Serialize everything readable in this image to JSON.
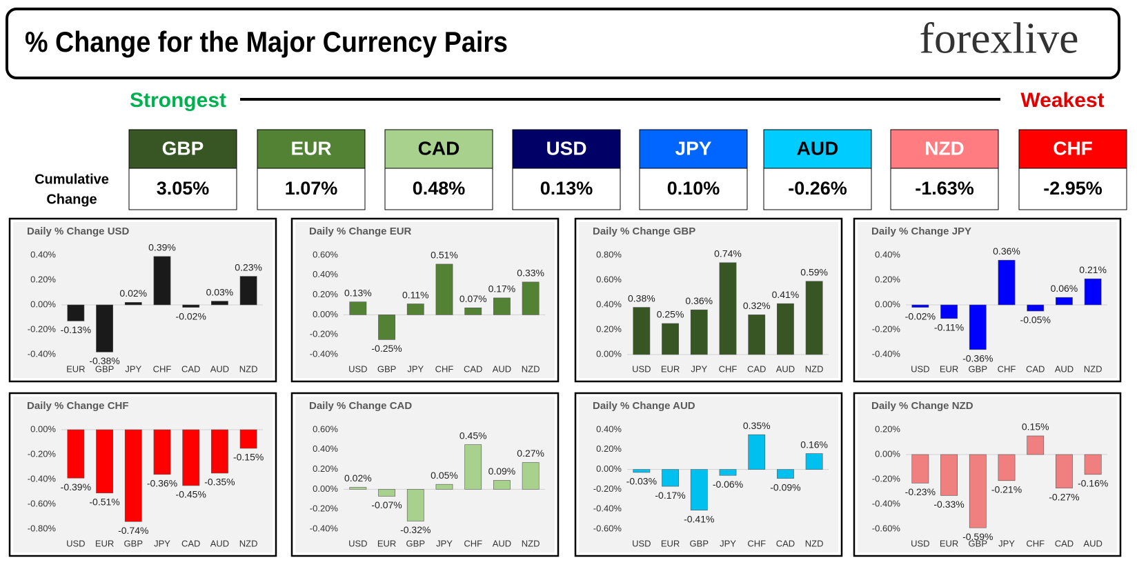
{
  "header": {
    "title": "% Change for the Major Currency Pairs",
    "logo": "forexlive"
  },
  "strongest": "Strongest",
  "weakest": "Weakest",
  "cumulative_label": [
    "Cumulative",
    "Change"
  ],
  "currencies": [
    {
      "code": "GBP",
      "change": "3.05%",
      "color": "#375623",
      "text_color": "#ffffff"
    },
    {
      "code": "EUR",
      "change": "1.07%",
      "color": "#548235",
      "text_color": "#ffffff"
    },
    {
      "code": "CAD",
      "change": "0.48%",
      "color": "#a9d18e",
      "text_color": "#000000"
    },
    {
      "code": "USD",
      "change": "0.13%",
      "color": "#000066",
      "text_color": "#ffffff"
    },
    {
      "code": "JPY",
      "change": "0.10%",
      "color": "#0066ff",
      "text_color": "#ffffff"
    },
    {
      "code": "AUD",
      "change": "-0.26%",
      "color": "#00ccff",
      "text_color": "#000000"
    },
    {
      "code": "NZD",
      "change": "-1.63%",
      "color": "#ff7c80",
      "text_color": "#ffffff"
    },
    {
      "code": "CHF",
      "change": "-2.95%",
      "color": "#ff0000",
      "text_color": "#ffffff"
    }
  ],
  "chart_data": [
    {
      "type": "bar",
      "title": "Daily % Change USD",
      "color": "#1a1a1a",
      "grid": false,
      "categories": [
        "EUR",
        "GBP",
        "JPY",
        "CHF",
        "CAD",
        "AUD",
        "NZD"
      ],
      "values": [
        -0.13,
        -0.38,
        0.02,
        0.39,
        -0.02,
        0.03,
        0.23
      ],
      "value_labels": [
        "-0.13%",
        "-0.38%",
        "0.02%",
        "0.39%",
        "-0.02%",
        "0.03%",
        "0.23%"
      ],
      "ylim": [
        -0.4,
        0.4
      ],
      "yticks": [
        {
          "value": -0.4,
          "label": "-0.40%"
        },
        {
          "value": -0.2,
          "label": "-0.20%"
        },
        {
          "value": 0,
          "label": "0.00%"
        },
        {
          "value": 0.2,
          "label": "0.20%"
        },
        {
          "value": 0.4,
          "label": "0.40%"
        }
      ]
    },
    {
      "type": "bar",
      "title": "Daily % Change EUR",
      "color": "#548235",
      "grid": false,
      "categories": [
        "USD",
        "GBP",
        "JPY",
        "CHF",
        "CAD",
        "AUD",
        "NZD"
      ],
      "values": [
        0.13,
        -0.25,
        0.11,
        0.51,
        0.07,
        0.17,
        0.33
      ],
      "value_labels": [
        "0.13%",
        "-0.25%",
        "0.11%",
        "0.51%",
        "0.07%",
        "0.17%",
        "0.33%"
      ],
      "ylim": [
        -0.4,
        0.6
      ],
      "yticks": [
        {
          "value": -0.4,
          "label": "-0.40%"
        },
        {
          "value": -0.2,
          "label": "-0.20%"
        },
        {
          "value": 0,
          "label": "0.00%"
        },
        {
          "value": 0.2,
          "label": "0.20%"
        },
        {
          "value": 0.4,
          "label": "0.40%"
        },
        {
          "value": 0.6,
          "label": "0.60%"
        }
      ]
    },
    {
      "type": "bar",
      "title": "Daily % Change GBP",
      "color": "#375623",
      "grid": false,
      "categories": [
        "USD",
        "EUR",
        "JPY",
        "CHF",
        "CAD",
        "AUD",
        "NZD"
      ],
      "values": [
        0.38,
        0.25,
        0.36,
        0.74,
        0.32,
        0.41,
        0.59
      ],
      "value_labels": [
        "0.38%",
        "0.25%",
        "0.36%",
        "0.74%",
        "0.32%",
        "0.41%",
        "0.59%"
      ],
      "ylim": [
        0,
        0.8
      ],
      "yticks": [
        {
          "value": 0,
          "label": "0.00%"
        },
        {
          "value": 0.2,
          "label": "0.20%"
        },
        {
          "value": 0.4,
          "label": "0.40%"
        },
        {
          "value": 0.6,
          "label": "0.60%"
        },
        {
          "value": 0.8,
          "label": "0.80%"
        }
      ]
    },
    {
      "type": "bar",
      "title": "Daily % Change JPY",
      "color": "#0000ff",
      "grid": false,
      "categories": [
        "USD",
        "EUR",
        "GBP",
        "CHF",
        "CAD",
        "AUD",
        "NZD"
      ],
      "values": [
        -0.02,
        -0.11,
        -0.36,
        0.36,
        -0.05,
        0.06,
        0.21
      ],
      "value_labels": [
        "-0.02%",
        "-0.11%",
        "-0.36%",
        "0.36%",
        "-0.05%",
        "0.06%",
        "0.21%"
      ],
      "ylim": [
        -0.4,
        0.4
      ],
      "yticks": [
        {
          "value": -0.4,
          "label": "-0.40%"
        },
        {
          "value": -0.2,
          "label": "-0.20%"
        },
        {
          "value": 0,
          "label": "0.00%"
        },
        {
          "value": 0.2,
          "label": "0.20%"
        },
        {
          "value": 0.4,
          "label": "0.40%"
        }
      ]
    },
    {
      "type": "bar",
      "title": "Daily % Change CHF",
      "color": "#ff0000",
      "grid": false,
      "categories": [
        "USD",
        "EUR",
        "GBP",
        "JPY",
        "CAD",
        "AUD",
        "NZD"
      ],
      "values": [
        -0.39,
        -0.51,
        -0.74,
        -0.36,
        -0.45,
        -0.35,
        -0.15
      ],
      "value_labels": [
        "-0.39%",
        "-0.51%",
        "-0.74%",
        "-0.36%",
        "-0.45%",
        "-0.35%",
        "-0.15%"
      ],
      "ylim": [
        -0.8,
        0
      ],
      "yticks": [
        {
          "value": -0.8,
          "label": "-0.80%"
        },
        {
          "value": -0.6,
          "label": "-0.60%"
        },
        {
          "value": -0.4,
          "label": "-0.40%"
        },
        {
          "value": -0.2,
          "label": "-0.20%"
        },
        {
          "value": 0,
          "label": "0.00%"
        }
      ]
    },
    {
      "type": "bar",
      "title": "Daily % Change CAD",
      "color": "#a9d18e",
      "grid": false,
      "categories": [
        "USD",
        "EUR",
        "GBP",
        "JPY",
        "CHF",
        "AUD",
        "NZD"
      ],
      "values": [
        0.02,
        -0.07,
        -0.32,
        0.05,
        0.45,
        0.09,
        0.27
      ],
      "value_labels": [
        "0.02%",
        "-0.07%",
        "-0.32%",
        "0.05%",
        "0.45%",
        "0.09%",
        "0.27%"
      ],
      "ylim": [
        -0.4,
        0.6
      ],
      "yticks": [
        {
          "value": -0.4,
          "label": "-0.40%"
        },
        {
          "value": -0.2,
          "label": "-0.20%"
        },
        {
          "value": 0,
          "label": "0.00%"
        },
        {
          "value": 0.2,
          "label": "0.20%"
        },
        {
          "value": 0.4,
          "label": "0.40%"
        },
        {
          "value": 0.6,
          "label": "0.60%"
        }
      ]
    },
    {
      "type": "bar",
      "title": "Daily % Change AUD",
      "color": "#00c0ef",
      "grid": false,
      "categories": [
        "USD",
        "EUR",
        "GBP",
        "JPY",
        "CHF",
        "CAD",
        "NZD"
      ],
      "values": [
        -0.03,
        -0.17,
        -0.41,
        -0.06,
        0.35,
        -0.09,
        0.16
      ],
      "value_labels": [
        "-0.03%",
        "-0.17%",
        "-0.41%",
        "-0.06%",
        "0.35%",
        "-0.09%",
        "0.16%"
      ],
      "ylim": [
        -0.6,
        0.4
      ],
      "yticks": [
        {
          "value": -0.6,
          "label": "-0.60%"
        },
        {
          "value": -0.4,
          "label": "-0.40%"
        },
        {
          "value": -0.2,
          "label": "-0.20%"
        },
        {
          "value": 0,
          "label": "0.00%"
        },
        {
          "value": 0.2,
          "label": "0.20%"
        },
        {
          "value": 0.4,
          "label": "0.40%"
        }
      ]
    },
    {
      "type": "bar",
      "title": "Daily % Change NZD",
      "color": "#f08080",
      "grid": false,
      "categories": [
        "USD",
        "EUR",
        "GBP",
        "JPY",
        "CHF",
        "CAD",
        "AUD"
      ],
      "values": [
        -0.23,
        -0.33,
        -0.59,
        -0.21,
        0.15,
        -0.27,
        -0.16
      ],
      "value_labels": [
        "-0.23%",
        "-0.33%",
        "-0.59%",
        "-0.21%",
        "0.15%",
        "-0.27%",
        "-0.16%"
      ],
      "ylim": [
        -0.6,
        0.2
      ],
      "yticks": [
        {
          "value": -0.6,
          "label": "-0.60%"
        },
        {
          "value": -0.4,
          "label": "-0.40%"
        },
        {
          "value": -0.2,
          "label": "-0.20%"
        },
        {
          "value": 0,
          "label": "0.00%"
        },
        {
          "value": 0.2,
          "label": "0.20%"
        }
      ]
    }
  ]
}
